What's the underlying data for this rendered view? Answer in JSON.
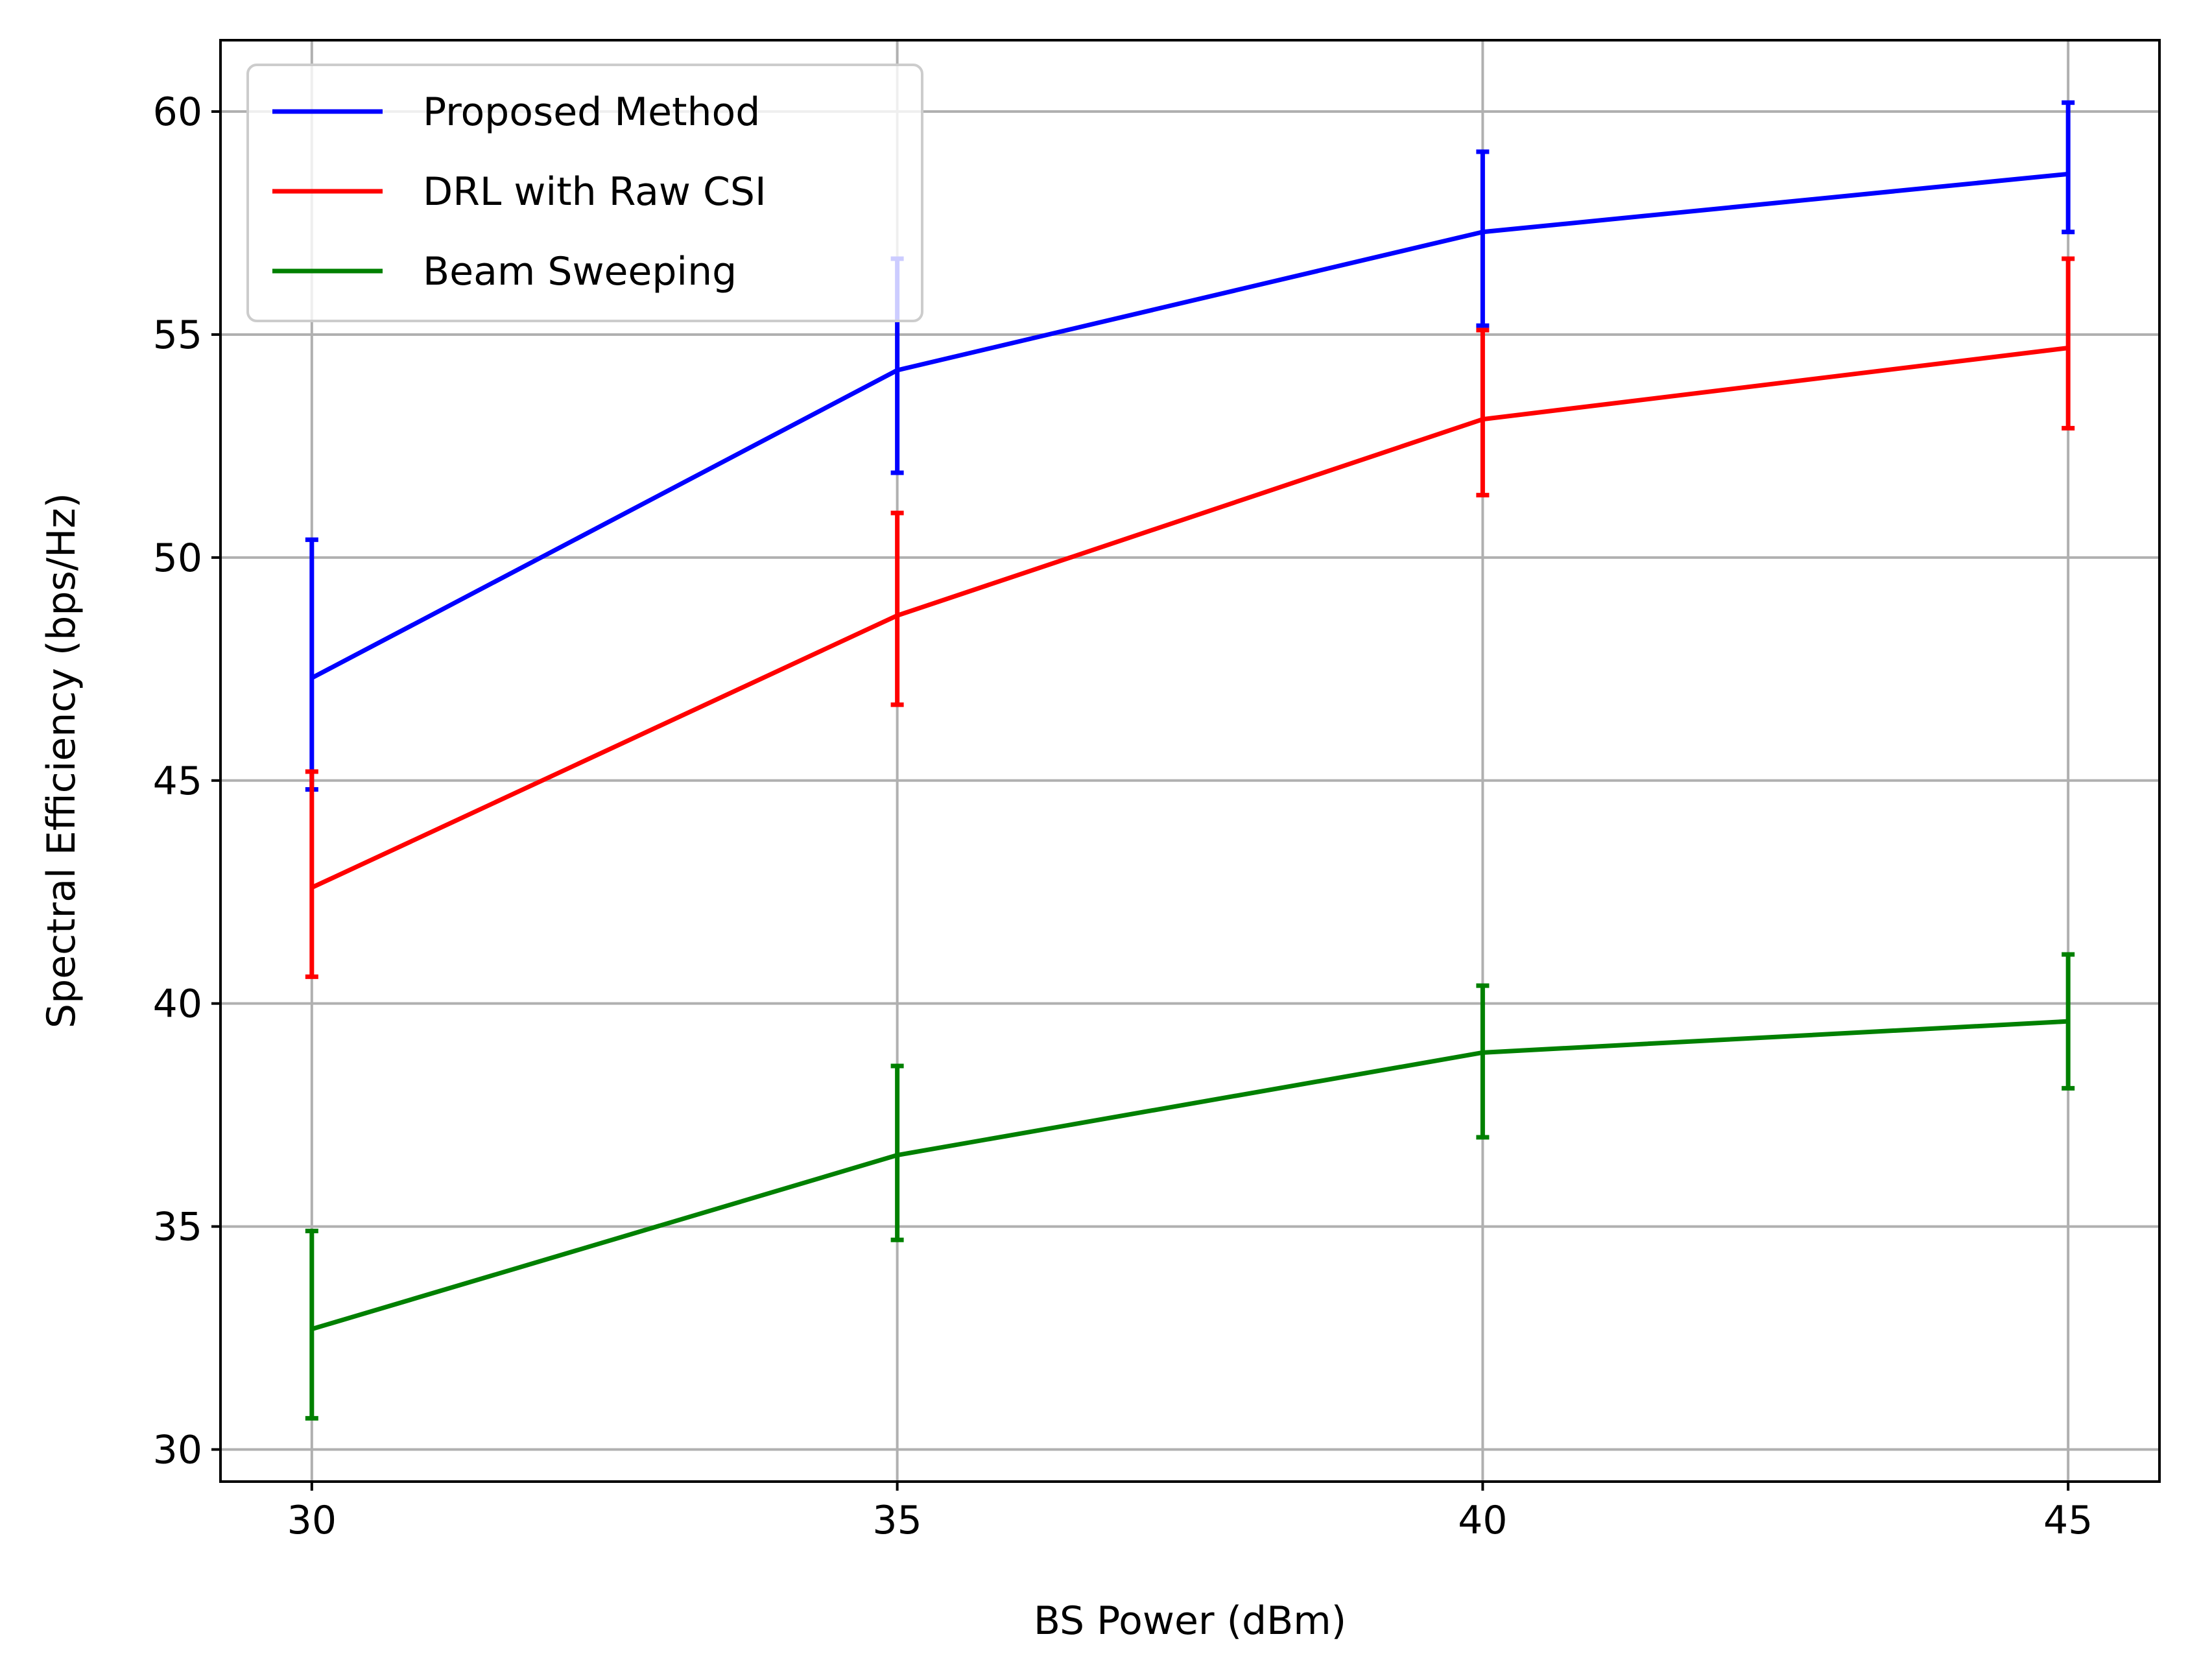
{
  "chart_data": {
    "type": "line",
    "title": "",
    "xlabel": "BS Power (dBm)",
    "ylabel": "Spectral Efficiency (bps/Hz)",
    "x": [
      30,
      35,
      40,
      45
    ],
    "x_ticks": [
      30,
      35,
      40,
      45
    ],
    "y_ticks": [
      30,
      35,
      40,
      45,
      50,
      55,
      60
    ],
    "xlim": [
      29.22,
      45.78
    ],
    "ylim": [
      29.28,
      61.6
    ],
    "grid": true,
    "legend_position": "upper-left",
    "error_bars": true,
    "series": [
      {
        "name": "Proposed Method",
        "color": "#0000ff",
        "values": [
          47.3,
          54.2,
          57.3,
          58.6
        ],
        "err_low": [
          44.8,
          51.9,
          55.2,
          57.3
        ],
        "err_high": [
          50.4,
          56.7,
          59.1,
          60.2
        ]
      },
      {
        "name": "DRL with Raw CSI",
        "color": "#ff0000",
        "values": [
          42.6,
          48.7,
          53.1,
          54.7
        ],
        "err_low": [
          40.6,
          46.7,
          51.4,
          52.9
        ],
        "err_high": [
          45.2,
          51.0,
          55.1,
          56.7
        ]
      },
      {
        "name": "Beam Sweeping",
        "color": "#008000",
        "values": [
          32.7,
          36.6,
          38.9,
          39.6
        ],
        "err_low": [
          30.7,
          34.7,
          37.0,
          38.1
        ],
        "err_high": [
          34.9,
          38.6,
          40.4,
          41.1
        ]
      }
    ]
  }
}
